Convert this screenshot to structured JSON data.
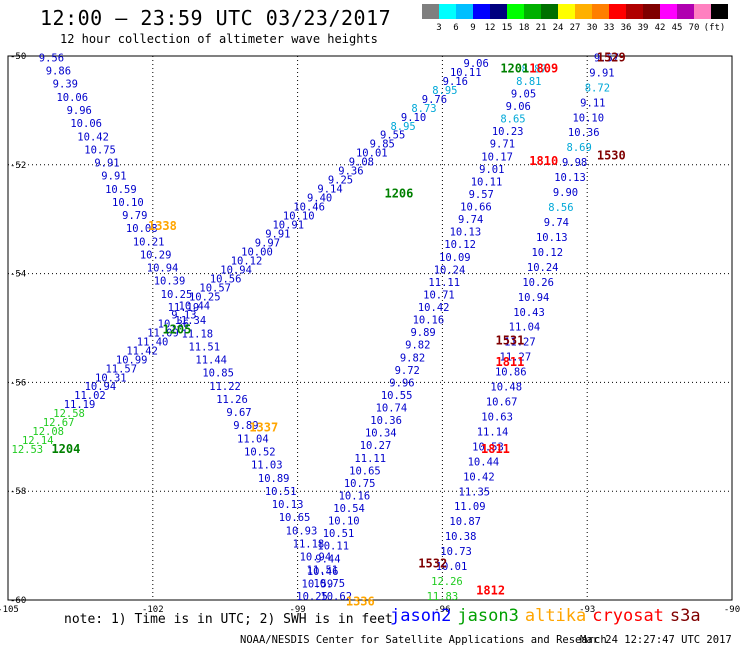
{
  "title": "12:00 — 23:59 UTC 03/23/2017",
  "subtitle": "12 hour collection of altimeter wave heights",
  "scale": {
    "unit": "(ft)",
    "colors": [
      "#7f7f7f",
      "#00ffff",
      "#00bfff",
      "#0000ff",
      "#00007f",
      "#00ff00",
      "#00b000",
      "#007000",
      "#ffff00",
      "#ffb000",
      "#ff7f00",
      "#ff0000",
      "#b00000",
      "#7f0000",
      "#ff00ff",
      "#b000b0",
      "#ff80c0",
      "#000000"
    ],
    "labels": [
      "3",
      "6",
      "9",
      "12",
      "15",
      "18",
      "21",
      "24",
      "27",
      "30",
      "33",
      "36",
      "39",
      "42",
      "45",
      "70"
    ]
  },
  "note": "note: 1) Time is in UTC; 2) SWH is in feet",
  "legend": [
    {
      "name": "jason2",
      "color": "#0000ff"
    },
    {
      "name": "jason3",
      "color": "#00a000"
    },
    {
      "name": "altika",
      "color": "#ffa500"
    },
    {
      "name": "cryosat",
      "color": "#ff0000"
    },
    {
      "name": "s3a",
      "color": "#800000"
    }
  ],
  "credit": "NOAA/NESDIS Center for Satellite Applications and Research",
  "stamp": "Mar 24 12:27:47 UTC 2017",
  "axes": {
    "x_ticks": [
      "-105",
      "-102",
      "-99",
      "-96",
      "-93",
      "-90"
    ],
    "y_ticks": [
      "-50",
      "-52",
      "-54",
      "-56",
      "-58",
      "-60"
    ]
  },
  "time_labels": [
    {
      "text": "1529",
      "lon": -92.8,
      "lat": -50.1,
      "color": "#800000"
    },
    {
      "text": "1809",
      "lon": -94.2,
      "lat": -50.3,
      "color": "#ff0000"
    },
    {
      "text": "1201",
      "lon": -94.8,
      "lat": -50.3,
      "color": "#008000"
    },
    {
      "text": "1530",
      "lon": -92.8,
      "lat": -51.9,
      "color": "#800000"
    },
    {
      "text": "1810",
      "lon": -94.2,
      "lat": -52.0,
      "color": "#ff0000"
    },
    {
      "text": "1206",
      "lon": -97.2,
      "lat": -52.6,
      "color": "#008000"
    },
    {
      "text": "1338",
      "lon": -102.1,
      "lat": -53.2,
      "color": "#ffa500"
    },
    {
      "text": "1205",
      "lon": -101.8,
      "lat": -55.1,
      "color": "#008000"
    },
    {
      "text": "1531",
      "lon": -94.9,
      "lat": -55.3,
      "color": "#800000"
    },
    {
      "text": "1811",
      "lon": -94.9,
      "lat": -55.7,
      "color": "#ff0000"
    },
    {
      "text": "1337",
      "lon": -100.0,
      "lat": -56.9,
      "color": "#ffa500"
    },
    {
      "text": "1204",
      "lon": -104.1,
      "lat": -57.3,
      "color": "#008000"
    },
    {
      "text": "1811",
      "lon": -95.2,
      "lat": -57.3,
      "color": "#ff0000"
    },
    {
      "text": "1532",
      "lon": -96.5,
      "lat": -59.4,
      "color": "#800000"
    },
    {
      "text": "1812",
      "lon": -95.3,
      "lat": -59.9,
      "color": "#ff0000"
    },
    {
      "text": "1336",
      "lon": -98.0,
      "lat": -60.1,
      "color": "#ffa500"
    }
  ],
  "tracks": [
    {
      "sat": "jason2",
      "start": [
        -104.1,
        -50.1
      ],
      "end": [
        -98.2,
        -60.0
      ],
      "color": "#0000cc",
      "values": [
        "9.56",
        "9.86",
        "9.39",
        "10.06",
        "9.96",
        "10.06",
        "10.42",
        "10.75",
        "9.91",
        "9.91",
        "10.59",
        "10.10",
        "9.79",
        "10.08",
        "10.21",
        "10.29",
        "10.94",
        "10.39",
        "10.25",
        "11.19",
        "11.34",
        "11.18",
        "11.51",
        "11.44",
        "10.85",
        "11.22",
        "11.26",
        "9.67",
        "9.89",
        "11.04",
        "10.52",
        "11.03",
        "10.89",
        "10.51",
        "10.13",
        "10.65",
        "10.93",
        "11.18",
        "10.94",
        "11.51",
        "10.75",
        "10.62"
      ]
    },
    {
      "sat": "jason3",
      "start": [
        -104.6,
        -57.3
      ],
      "end": [
        -95.3,
        -50.2
      ],
      "color": "#0000cc",
      "values": [
        "12.53",
        "12.14",
        "12.08",
        "12.67",
        "12.58",
        "11.19",
        "11.02",
        "10.94",
        "10.31",
        "11.57",
        "10.99",
        "11.42",
        "11.40",
        "11.09",
        "10.36",
        "9.13",
        "10.44",
        "10.25",
        "10.57",
        "10.56",
        "10.94",
        "10.12",
        "10.00",
        "9.97",
        "9.91",
        "10.91",
        "10.10",
        "10.46",
        "9.40",
        "9.14",
        "9.25",
        "9.36",
        "9.08",
        "10.01",
        "9.85",
        "9.55",
        "8.95",
        "9.10",
        "8.73",
        "9.76",
        "8.95",
        "9.16",
        "10.11",
        "9.06"
      ]
    },
    {
      "sat": "altika",
      "start": [
        -98.7,
        -60.0
      ],
      "end": [
        -94.1,
        -50.3
      ],
      "color": "#0000cc",
      "values": [
        "10.25",
        "10.59",
        "10.46",
        "9.44",
        "10.11",
        "10.51",
        "10.10",
        "10.54",
        "10.16",
        "10.75",
        "10.65",
        "11.11",
        "10.27",
        "10.34",
        "10.36",
        "10.74",
        "10.55",
        "9.96",
        "9.72",
        "9.82",
        "9.82",
        "9.89",
        "10.16",
        "10.42",
        "10.71",
        "11.11",
        "10.24",
        "10.09",
        "10.12",
        "10.13",
        "9.74",
        "10.66",
        "9.57",
        "10.11",
        "9.01",
        "10.17",
        "9.71",
        "10.23",
        "8.65",
        "9.06",
        "9.05",
        "8.81",
        "8.87"
      ]
    },
    {
      "sat": "cryosat",
      "start": [
        -96.0,
        -60.0
      ],
      "end": [
        -92.6,
        -50.1
      ],
      "color": "#0000cc",
      "values": [
        "11.83",
        "12.26",
        "10.01",
        "10.73",
        "10.38",
        "10.87",
        "11.09",
        "11.35",
        "10.42",
        "10.44",
        "10.53",
        "11.14",
        "10.63",
        "10.67",
        "10.48",
        "10.86",
        "11.27",
        "11.27",
        "11.04",
        "10.43",
        "10.94",
        "10.26",
        "10.24",
        "10.12",
        "10.13",
        "9.74",
        "8.56",
        "9.90",
        "10.13",
        "9.98",
        "8.69",
        "10.36",
        "10.10",
        "9.11",
        "8.72",
        "9.91",
        "9.57"
      ]
    }
  ]
}
